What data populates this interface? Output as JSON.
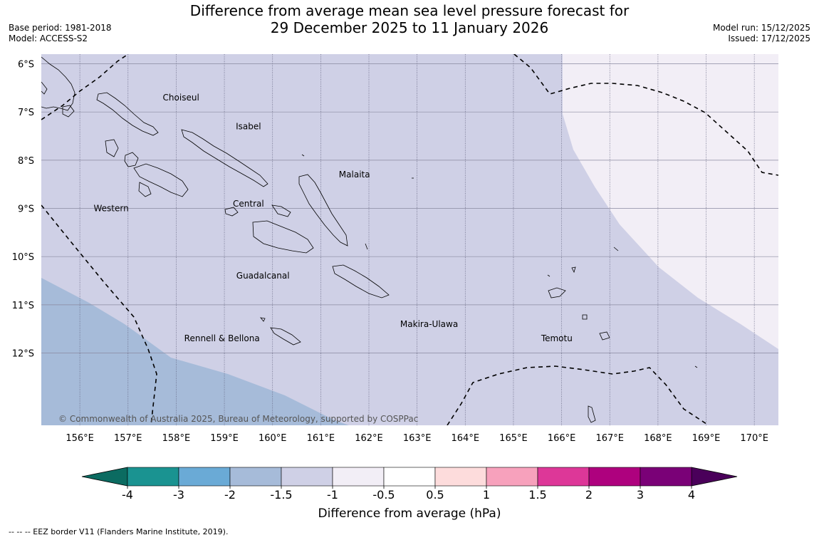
{
  "title_line1": "Difference from average mean sea level pressure forecast for",
  "title_line2": "29 December 2025 to 11 January 2026",
  "base_period": "Base period: 1981-2018",
  "model": "Model: ACCESS-S2",
  "model_run": "Model run: 15/12/2025",
  "issued": "Issued: 17/12/2025",
  "map": {
    "lon_min": 155.2,
    "lon_max": 170.5,
    "lat_top": -5.8,
    "lat_bottom": -13.5,
    "lat_labels": [
      "6°S",
      "7°S",
      "8°S",
      "9°S",
      "10°S",
      "11°S",
      "12°S"
    ],
    "lon_labels": [
      "156°E",
      "157°E",
      "158°E",
      "159°E",
      "160°E",
      "161°E",
      "162°E",
      "163°E",
      "164°E",
      "165°E",
      "166°E",
      "167°E",
      "168°E",
      "169°E",
      "170°E"
    ],
    "regions": [
      {
        "name": "Choiseul",
        "lon": 158.1,
        "lat": -6.7
      },
      {
        "name": "Isabel",
        "lon": 159.5,
        "lat": -7.3
      },
      {
        "name": "Malaita",
        "lon": 161.7,
        "lat": -8.3
      },
      {
        "name": "Western",
        "lon": 156.65,
        "lat": -9.0
      },
      {
        "name": "Central",
        "lon": 159.5,
        "lat": -8.9
      },
      {
        "name": "Guadalcanal",
        "lon": 159.8,
        "lat": -10.4
      },
      {
        "name": "Makira-Ulawa",
        "lon": 163.25,
        "lat": -11.4
      },
      {
        "name": "Rennell & Bellona",
        "lon": 158.95,
        "lat": -11.7
      },
      {
        "name": "Temotu",
        "lon": 165.9,
        "lat": -11.7
      }
    ],
    "copyright": "© Commonwealth of Australia 2025, Bureau of Meteorology, supported by COSPPac",
    "colors": {
      "anomaly_neg1_5_to_neg1": "#cfd0e6",
      "anomaly_neg2_to_neg1_5": "#a6bbd9",
      "anomaly_neg1_to_neg0_5": "#f2eef6"
    }
  },
  "colorbar": {
    "title": "Difference from average (hPa)",
    "ticks": [
      "-4",
      "-3",
      "-2",
      "-1.5",
      "-1",
      "-0.5",
      "0.5",
      "1",
      "1.5",
      "2",
      "3",
      "4"
    ],
    "colors": [
      "#1a9391",
      "#6aaad6",
      "#a6bbd9",
      "#cfd0e6",
      "#f2eef6",
      "#ffffff",
      "#fddcdc",
      "#f7a1bc",
      "#dd3798",
      "#ae017e",
      "#7a0177"
    ],
    "low_extend_color": "#0b6b61",
    "high_extend_color": "#4a005a"
  },
  "footnote": "--  --  -- EEZ border V11 (Flanders Marine Institute, 2019)."
}
